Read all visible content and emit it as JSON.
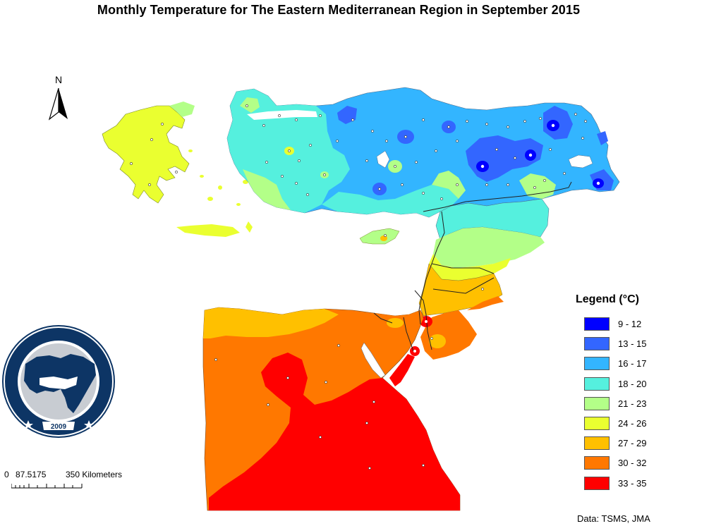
{
  "title": "Monthly Temperature for The Eastern Mediterranean Region in September 2015",
  "north_arrow": {
    "label": "N",
    "icon": "north-arrow-icon"
  },
  "legend": {
    "title": "Legend (°C)",
    "items": [
      {
        "label": "9 - 12",
        "color": "#0000ff"
      },
      {
        "label": "13 - 15",
        "color": "#3366ff"
      },
      {
        "label": "16 - 17",
        "color": "#33b5ff"
      },
      {
        "label": "18 - 20",
        "color": "#55f0de"
      },
      {
        "label": "21 - 23",
        "color": "#b3ff88"
      },
      {
        "label": "24 - 26",
        "color": "#eaff30"
      },
      {
        "label": "27 - 29",
        "color": "#ffc000"
      },
      {
        "label": "30 - 32",
        "color": "#ff7800"
      },
      {
        "label": "33 - 35",
        "color": "#ff0000"
      }
    ]
  },
  "scale_bar": {
    "tick_0": "0",
    "tick_1": "87.5175",
    "tick_2": "350 Kilometers"
  },
  "source": "Data: TSMS,  JMA",
  "logo": {
    "text_top": "EASTERN MEDITERRANEAN CLIMATE CENTRE",
    "year": "2009",
    "colors": {
      "navy": "#0d3565",
      "gray": "#c8ccd2"
    }
  }
}
